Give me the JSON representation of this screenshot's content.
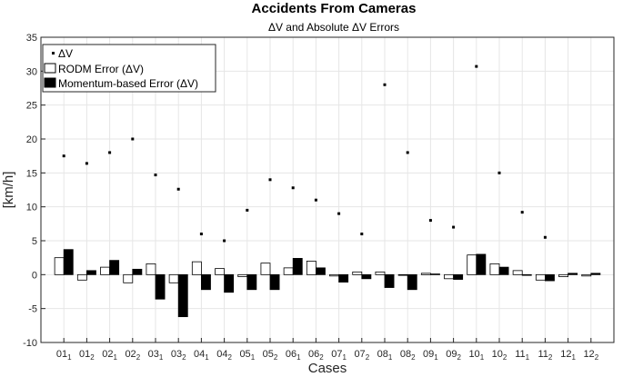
{
  "chart_data": {
    "type": "bar",
    "title": "Accidents From Cameras",
    "subtitle": "ΔV and Absolute ΔV Errors",
    "xlabel": "Cases",
    "ylabel": "[km/h]",
    "ylim": [
      -10,
      35
    ],
    "yticks": [
      -10,
      -5,
      0,
      5,
      10,
      15,
      20,
      25,
      30,
      35
    ],
    "grid": true,
    "legend_position": "top-left",
    "categories": [
      {
        "base": "01",
        "sub": "1"
      },
      {
        "base": "01",
        "sub": "2"
      },
      {
        "base": "02",
        "sub": "1"
      },
      {
        "base": "02",
        "sub": "2"
      },
      {
        "base": "03",
        "sub": "1"
      },
      {
        "base": "03",
        "sub": "2"
      },
      {
        "base": "04",
        "sub": "1"
      },
      {
        "base": "04",
        "sub": "2"
      },
      {
        "base": "05",
        "sub": "1"
      },
      {
        "base": "05",
        "sub": "2"
      },
      {
        "base": "06",
        "sub": "1"
      },
      {
        "base": "06",
        "sub": "2"
      },
      {
        "base": "07",
        "sub": "1"
      },
      {
        "base": "07",
        "sub": "2"
      },
      {
        "base": "08",
        "sub": "1"
      },
      {
        "base": "08",
        "sub": "2"
      },
      {
        "base": "09",
        "sub": "1"
      },
      {
        "base": "09",
        "sub": "2"
      },
      {
        "base": "10",
        "sub": "1"
      },
      {
        "base": "10",
        "sub": "2"
      },
      {
        "base": "11",
        "sub": "1"
      },
      {
        "base": "11",
        "sub": "2"
      },
      {
        "base": "12",
        "sub": "1"
      },
      {
        "base": "12",
        "sub": "2"
      }
    ],
    "series": [
      {
        "name": "ΔV",
        "kind": "point",
        "color": "#000000",
        "values": [
          17.5,
          16.4,
          18.0,
          20.0,
          14.7,
          12.6,
          6.0,
          5.0,
          9.5,
          14.0,
          12.8,
          11.0,
          9.0,
          6.0,
          28.0,
          18.0,
          8.0,
          7.0,
          30.7,
          15.0,
          9.2,
          5.5,
          null,
          null
        ]
      },
      {
        "name": "RODM Error (ΔV)",
        "kind": "bar",
        "color": "#ffffff",
        "values": [
          2.5,
          -0.8,
          1.1,
          -1.2,
          1.6,
          -1.2,
          1.9,
          0.9,
          -0.3,
          1.7,
          1.0,
          2.0,
          -0.2,
          0.4,
          0.4,
          0.0,
          0.2,
          -0.6,
          2.9,
          1.6,
          0.6,
          -0.8,
          -0.3,
          -0.2
        ]
      },
      {
        "name": "Momentum-based Error (ΔV)",
        "kind": "bar",
        "color": "#000000",
        "values": [
          3.7,
          0.6,
          2.1,
          0.8,
          -3.6,
          -6.2,
          -2.2,
          -2.6,
          -2.2,
          -2.2,
          2.4,
          1.0,
          -1.1,
          -0.6,
          -1.9,
          -2.2,
          0.1,
          -0.7,
          3.0,
          1.1,
          0.0,
          -0.9,
          0.2,
          0.2
        ]
      }
    ]
  }
}
